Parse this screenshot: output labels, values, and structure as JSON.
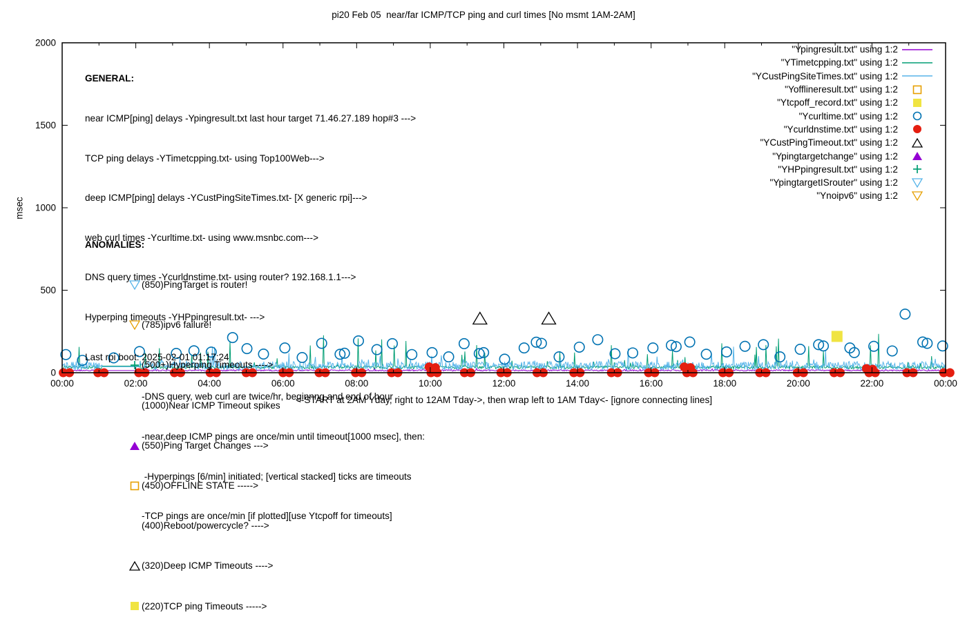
{
  "title": "pi20 Feb 05  near/far ICMP/TCP ping and curl times [No msmt 1AM-2AM]",
  "general": {
    "heading": "GENERAL:",
    "lines": [
      "near ICMP[ping] delays -Ypingresult.txt last hour target 71.46.27.189 hop#3 --->",
      "TCP ping delays -YTimetcpping.txt- using Top100Web--->",
      "deep ICMP[ping] delays -YCustPingSiteTimes.txt- [X generic rpi]--->",
      "web curl times -Ycurltime.txt- using www.msnbc.com--->",
      "DNS query times -Ycurldnstime.txt- using router? 192.168.1.1--->",
      "Hyperping timeouts -YHPpingresult.txt- --->",
      "Last rpi boot: 2025-02-01 01:17:24"
    ],
    "indented_lines": [
      "-DNS query, web curl are twice/hr, beginnng and end of hour",
      "-near,deep ICMP pings are once/min until timeout[1000 msec], then:",
      " -Hyperpings [6/min] initiated; [vertical stacked] ticks are timeouts",
      "-TCP pings are once/min [if plotted][use Ytcpoff for timeouts]"
    ]
  },
  "anomalies": {
    "heading": "ANOMALIES:",
    "items": [
      {
        "marker": "tridown-open",
        "color": "#56b4e9",
        "label": "(850)PingTarget is router!"
      },
      {
        "marker": "tridown-open",
        "color": "#e69f00",
        "label": "(785)ipv6 failure!"
      },
      {
        "marker": "plus",
        "color": "#009e73",
        "label": "(500+)Hyperping Timeouts ---->"
      },
      {
        "marker": "none",
        "color": "",
        "label": "(1000)Near ICMP Timeout spikes"
      },
      {
        "marker": "triangle-filled",
        "color": "#9400d3",
        "label": "(550)Ping Target Changes --->"
      },
      {
        "marker": "square-open",
        "color": "#e69f00",
        "label": "(450)OFFLINE STATE ----->"
      },
      {
        "marker": "none",
        "color": "",
        "label": "(400)Reboot/powercycle? ---->"
      },
      {
        "marker": "triangle-open",
        "color": "#000000",
        "label": "(320)Deep ICMP Timeouts ---->"
      },
      {
        "marker": "square-filled",
        "color": "#f0e442",
        "label": "(220)TCP ping Timeouts ----->"
      }
    ]
  },
  "legend": {
    "entries": [
      {
        "label": "\"Ypingresult.txt\" using 1:2",
        "marker": "line",
        "color": "#9400d3"
      },
      {
        "label": "\"YTimetcpping.txt\" using 1:2",
        "marker": "line",
        "color": "#009e73"
      },
      {
        "label": "\"YCustPingSiteTimes.txt\" using 1:2",
        "marker": "line",
        "color": "#56b4e9"
      },
      {
        "label": "\"Yofflineresult.txt\" using 1:2",
        "marker": "square-open",
        "color": "#e69f00"
      },
      {
        "label": "\"Ytcpoff_record.txt\" using 1:2",
        "marker": "square-filled",
        "color": "#f0e442"
      },
      {
        "label": "\"Ycurltime.txt\" using 1:2",
        "marker": "circle-open",
        "color": "#0072b2"
      },
      {
        "label": "\"Ycurldnstime.txt\" using 1:2",
        "marker": "circle-filled",
        "color": "#e51e10"
      },
      {
        "label": "\"YCustPingTimeout.txt\" using 1:2",
        "marker": "triangle-open",
        "color": "#000000"
      },
      {
        "label": "\"Ypingtargetchange\" using 1:2",
        "marker": "triangle-filled",
        "color": "#9400d3"
      },
      {
        "label": "\"YHPpingresult.txt\" using 1:2",
        "marker": "plus",
        "color": "#009e73"
      },
      {
        "label": "\"YpingtargetISrouter\" using 1:2",
        "marker": "tridown-open",
        "color": "#56b4e9"
      },
      {
        "label": "\"Ynoipv6\" using 1:2",
        "marker": "tridown-open",
        "color": "#e69f00"
      }
    ]
  },
  "xaxis": {
    "caption": "<-START at 2AM Yday, right to 12AM Tday->, then wrap left to 1AM Tday<- [ignore connecting lines]"
  },
  "yaxis": {
    "label": "msec"
  },
  "chart_data": {
    "type": "line",
    "title": "pi20 Feb 05  near/far ICMP/TCP ping and curl times [No msmt 1AM-2AM]",
    "xlabel": "",
    "ylabel": "msec",
    "ylim": [
      0,
      2000
    ],
    "xlim_hours": [
      0,
      24
    ],
    "grid": false,
    "legend_position": "top-right-inside",
    "x_ticklabels": [
      "00:00",
      "02:00",
      "04:00",
      "06:00",
      "08:00",
      "10:00",
      "12:00",
      "14:00",
      "16:00",
      "18:00",
      "20:00",
      "22:00",
      "00:00"
    ],
    "ytick_values": [
      0,
      500,
      1000,
      1500,
      2000
    ],
    "gap_hours": [
      1.08,
      2.1
    ],
    "gap_note": "No msmt 1AM-2AM; flat connecting lines drawn across gap",
    "line_series": [
      {
        "name": "Ypingresult.txt",
        "desc": "near ICMP ping delay, ~once/min",
        "color": "#9400d3",
        "base_msec": 13,
        "noise_msec": 4,
        "spike_rate": 0.01,
        "spike_max_msec": 25,
        "gap_msec": 13
      },
      {
        "name": "YTimetcpping.txt",
        "desc": "TCP ping delay, once/min",
        "color": "#009e73",
        "base_msec": 30,
        "noise_msec": 9,
        "spike_rate": 0.06,
        "spike_max_msec": 230,
        "gap_msec": 40
      },
      {
        "name": "YCustPingSiteTimes.txt",
        "desc": "deep ICMP ping delay, once/min",
        "color": "#56b4e9",
        "base_msec": 34,
        "noise_msec": 26,
        "spike_rate": 0.05,
        "spike_max_msec": 110,
        "gap_msec": 36
      }
    ],
    "point_series": [
      {
        "name": "Ycurltime.txt",
        "desc": "web curl times, twice/hr",
        "marker": "circle-open",
        "color": "#0072b2",
        "doubled": false,
        "points": [
          {
            "t": 0.1,
            "v": 110
          },
          {
            "t": 0.55,
            "v": 75
          },
          {
            "t": 1.4,
            "v": 90
          },
          {
            "t": 2.1,
            "v": 128
          },
          {
            "t": 3.1,
            "v": 117
          },
          {
            "t": 3.58,
            "v": 133
          },
          {
            "t": 4.05,
            "v": 125
          },
          {
            "t": 4.63,
            "v": 213
          },
          {
            "t": 5.02,
            "v": 146
          },
          {
            "t": 5.47,
            "v": 113
          },
          {
            "t": 6.05,
            "v": 150
          },
          {
            "t": 6.52,
            "v": 92
          },
          {
            "t": 7.05,
            "v": 178
          },
          {
            "t": 7.55,
            "v": 112
          },
          {
            "t": 7.67,
            "v": 118
          },
          {
            "t": 8.05,
            "v": 193
          },
          {
            "t": 8.55,
            "v": 140
          },
          {
            "t": 8.97,
            "v": 176
          },
          {
            "t": 9.5,
            "v": 110
          },
          {
            "t": 10.05,
            "v": 122
          },
          {
            "t": 10.5,
            "v": 96
          },
          {
            "t": 10.92,
            "v": 176
          },
          {
            "t": 11.33,
            "v": 116
          },
          {
            "t": 11.45,
            "v": 122
          },
          {
            "t": 12.02,
            "v": 82
          },
          {
            "t": 12.55,
            "v": 150
          },
          {
            "t": 12.88,
            "v": 185
          },
          {
            "t": 13.02,
            "v": 178
          },
          {
            "t": 13.5,
            "v": 96
          },
          {
            "t": 14.05,
            "v": 155
          },
          {
            "t": 14.55,
            "v": 200
          },
          {
            "t": 15.02,
            "v": 115
          },
          {
            "t": 15.5,
            "v": 120
          },
          {
            "t": 16.05,
            "v": 150
          },
          {
            "t": 16.55,
            "v": 166
          },
          {
            "t": 16.68,
            "v": 158
          },
          {
            "t": 17.05,
            "v": 186
          },
          {
            "t": 17.5,
            "v": 112
          },
          {
            "t": 18.05,
            "v": 126
          },
          {
            "t": 18.55,
            "v": 160
          },
          {
            "t": 19.05,
            "v": 170
          },
          {
            "t": 19.5,
            "v": 96
          },
          {
            "t": 20.05,
            "v": 142
          },
          {
            "t": 20.55,
            "v": 170
          },
          {
            "t": 20.68,
            "v": 162
          },
          {
            "t": 21.4,
            "v": 150
          },
          {
            "t": 21.52,
            "v": 122
          },
          {
            "t": 22.05,
            "v": 160
          },
          {
            "t": 22.55,
            "v": 132
          },
          {
            "t": 22.9,
            "v": 355
          },
          {
            "t": 23.38,
            "v": 186
          },
          {
            "t": 23.5,
            "v": 178
          },
          {
            "t": 23.92,
            "v": 162
          }
        ]
      },
      {
        "name": "Ycurldnstime.txt",
        "desc": "DNS query times, twice/hr (hug 0 line)",
        "marker": "circle-filled",
        "color": "#e51e10",
        "doubled": true,
        "points": [
          {
            "t": 0.03,
            "v": 0
          },
          {
            "t": 0.97,
            "v": 0
          },
          {
            "t": 2.08,
            "v": 0
          },
          {
            "t": 3.05,
            "v": 0
          },
          {
            "t": 4.02,
            "v": 0
          },
          {
            "t": 5.0,
            "v": 0
          },
          {
            "t": 6.0,
            "v": 0
          },
          {
            "t": 6.98,
            "v": 0
          },
          {
            "t": 7.97,
            "v": 0
          },
          {
            "t": 8.95,
            "v": 0
          },
          {
            "t": 9.97,
            "v": 35
          },
          {
            "t": 10.02,
            "v": 0
          },
          {
            "t": 10.93,
            "v": 0
          },
          {
            "t": 11.92,
            "v": 0
          },
          {
            "t": 12.9,
            "v": 0
          },
          {
            "t": 13.9,
            "v": 0
          },
          {
            "t": 14.92,
            "v": 0
          },
          {
            "t": 15.93,
            "v": 0
          },
          {
            "t": 16.9,
            "v": 35
          },
          {
            "t": 16.97,
            "v": 0
          },
          {
            "t": 17.95,
            "v": 0
          },
          {
            "t": 18.95,
            "v": 0
          },
          {
            "t": 19.97,
            "v": 0
          },
          {
            "t": 20.97,
            "v": 0
          },
          {
            "t": 21.85,
            "v": 25
          },
          {
            "t": 21.92,
            "v": 0
          },
          {
            "t": 22.95,
            "v": 0
          },
          {
            "t": 23.95,
            "v": 0
          }
        ]
      },
      {
        "name": "YCustPingTimeout.txt",
        "desc": "deep ICMP timeouts plotted at 320",
        "marker": "triangle-open",
        "color": "#000000",
        "doubled": false,
        "points": [
          {
            "t": 11.35,
            "v": 320
          },
          {
            "t": 13.22,
            "v": 320
          }
        ]
      },
      {
        "name": "Ytcpoff_record.txt",
        "desc": "TCP ping timeout plotted at 220",
        "marker": "square-filled",
        "color": "#f0e442",
        "doubled": false,
        "points": [
          {
            "t": 21.05,
            "v": 220
          }
        ]
      }
    ]
  }
}
